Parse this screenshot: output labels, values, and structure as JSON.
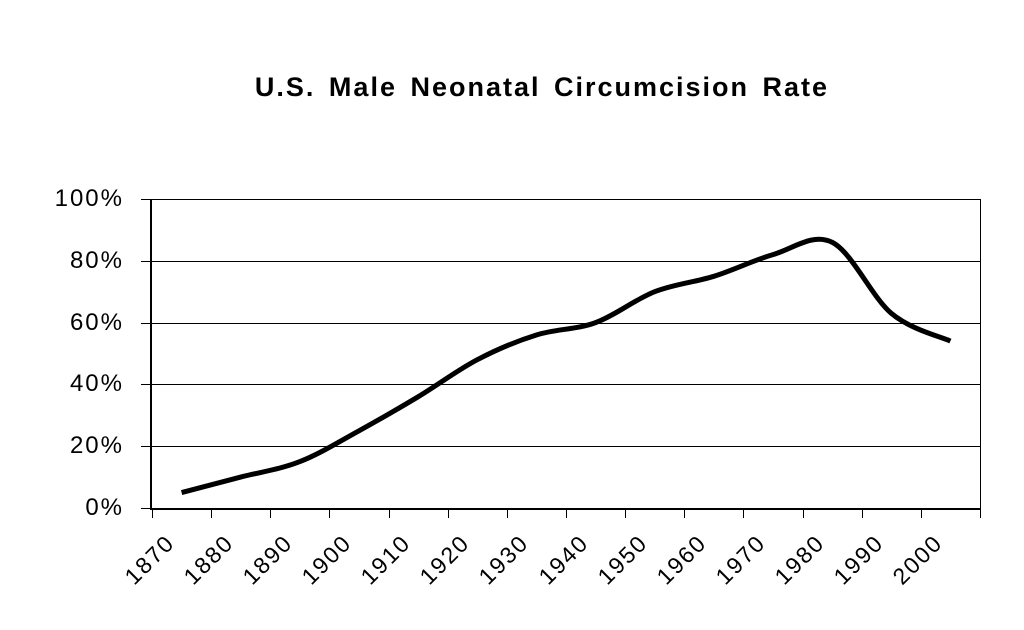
{
  "page": {
    "background": "#ffffff",
    "text_color": "#000000"
  },
  "chart_data": {
    "type": "line",
    "title": "U.S. Male Neonatal Circumcision Rate",
    "categories": [
      "1870",
      "1880",
      "1890",
      "1900",
      "1910",
      "1920",
      "1930",
      "1940",
      "1950",
      "1960",
      "1970",
      "1980",
      "1990",
      "2000"
    ],
    "values": [
      5,
      10,
      15,
      25,
      36,
      48,
      56,
      60,
      70,
      75,
      82,
      86,
      63,
      54
    ],
    "unit": "%",
    "xlabel": "",
    "ylabel": "",
    "ylim": [
      0,
      100
    ],
    "y_tick_step": 20,
    "y_tick_labels": [
      "100%",
      "80%",
      "60%",
      "40%",
      "20%",
      "0%"
    ],
    "x_tick_boundaries": 15,
    "grid": true,
    "legend_position": "none",
    "smoothed": true,
    "line_color": "#000000",
    "line_width": 5,
    "axis_color": "#000000",
    "grid_color": "#000000",
    "background": "#ffffff"
  }
}
